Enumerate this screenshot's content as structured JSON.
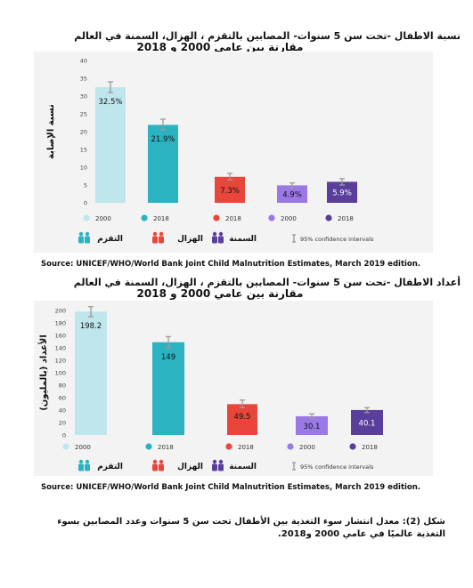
{
  "figures": [
    {
      "title_line1": "نسبة الاطفال -تحت سن 5 سنوات- المصابين بالتقزم ، الهزال، السمنة في العالم",
      "title_line2": "مقارنة بين عامي 2000 و 2018",
      "source": "Source:  UNICEF/WHO/World Bank Joint Child Malnutrition Estimates, March 2019 edition.",
      "legend": {
        "stunting": "التقزم",
        "wasting": "الهزال",
        "overweight": "السمنة",
        "ci": "95% confidence intervals"
      }
    },
    {
      "title_line1": "أعداد الاطفال -تحت سن 5 سنوات- المصابين بالتقزم ، الهزال، السمنة في العالم",
      "title_line2": "مقارنة بين عامي 2000 و 2018",
      "source": "Source:  UNICEF/WHO/World Bank Joint Child Malnutrition Estimates, March 2019 edition.",
      "legend": {
        "stunting": "التقزم",
        "wasting": "الهزال",
        "overweight": "السمنة",
        "ci": "95% confidence intervals"
      }
    }
  ],
  "caption": "شكل (2): معدل انتشار سوء التغذية بين الأطفال تحت سن 5 سنوات وعدد المصابين بسوء التغذية عالميًا في عامي 2000 و2018.",
  "colors": {
    "stunting_2000": "#bfe6ec",
    "stunting_2018": "#2cb3c1",
    "wasting_2018": "#e8463b",
    "overweight_2000": "#9a78e6",
    "overweight_2018": "#5a3e9c",
    "error_bar": "#9a9a9a",
    "panel_bg": "#f3f3f4"
  },
  "chart_data": [
    {
      "type": "bar",
      "ylabel": "نسبة الإصابة",
      "ylim": [
        0,
        40
      ],
      "yticks": [
        0,
        5,
        10,
        15,
        20,
        25,
        30,
        35,
        40
      ],
      "grid": false,
      "bars": [
        {
          "group": "التقزم",
          "year": "2000",
          "value": 32.5,
          "label": "32.5%",
          "ci": [
            31.0,
            34.0
          ]
        },
        {
          "group": "التقزم",
          "year": "2018",
          "value": 21.9,
          "label": "21.9%",
          "ci": [
            20.5,
            23.5
          ]
        },
        {
          "group": "الهزال",
          "year": "2018",
          "value": 7.3,
          "label": "7.3%",
          "ci": [
            6.4,
            8.3
          ]
        },
        {
          "group": "السمنة",
          "year": "2000",
          "value": 4.9,
          "label": "4.9%",
          "ci": [
            4.2,
            5.6
          ]
        },
        {
          "group": "السمنة",
          "year": "2018",
          "value": 5.9,
          "label": "5.9%",
          "ci": [
            5.0,
            6.8
          ]
        }
      ]
    },
    {
      "type": "bar",
      "ylabel": "الأعداد (بالمليون)",
      "ylim": [
        0,
        200
      ],
      "yticks": [
        0,
        20,
        40,
        60,
        80,
        100,
        120,
        140,
        160,
        180,
        200
      ],
      "grid": false,
      "bars": [
        {
          "group": "التقزم",
          "year": "2000",
          "value": 198.2,
          "label": "198.2",
          "ci": [
            190,
            206
          ]
        },
        {
          "group": "التقزم",
          "year": "2018",
          "value": 149,
          "label": "149",
          "ci": [
            140,
            158
          ]
        },
        {
          "group": "الهزال",
          "year": "2018",
          "value": 49.5,
          "label": "49.5",
          "ci": [
            44,
            56
          ]
        },
        {
          "group": "السمنة",
          "year": "2000",
          "value": 30.1,
          "label": "30.1",
          "ci": [
            27,
            34
          ]
        },
        {
          "group": "السمنة",
          "year": "2018",
          "value": 40.1,
          "label": "40.1",
          "ci": [
            36,
            44
          ]
        }
      ]
    }
  ]
}
